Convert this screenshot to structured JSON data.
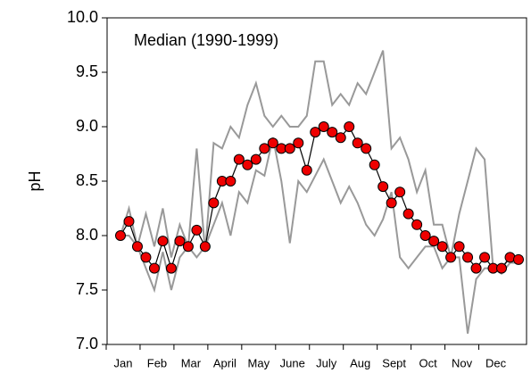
{
  "chart_data": {
    "type": "line",
    "title": "Median (1990-1999)",
    "y_label": "pH",
    "categories": [
      "Jan",
      null,
      null,
      null,
      "Feb",
      null,
      null,
      null,
      "Mar",
      null,
      null,
      null,
      "April",
      null,
      null,
      null,
      "May",
      null,
      null,
      null,
      "June",
      null,
      null,
      null,
      "July",
      null,
      null,
      null,
      "Aug",
      null,
      null,
      null,
      "Sept",
      null,
      null,
      null,
      "Oct",
      null,
      null,
      null,
      "Nov",
      null,
      null,
      null,
      "Dec",
      null,
      null,
      null
    ],
    "series": [
      {
        "color": "#999999",
        "values": [
          8.0,
          8.25,
          7.9,
          8.2,
          7.9,
          8.25,
          7.8,
          8.1,
          7.9,
          8.8,
          7.85,
          8.85,
          8.8,
          9.0,
          8.9,
          9.2,
          9.4,
          9.1,
          9.0,
          9.1,
          9.0,
          9.0,
          9.1,
          9.6,
          9.6,
          9.2,
          9.3,
          9.2,
          9.4,
          9.3,
          9.5,
          9.7,
          8.8,
          8.9,
          8.7,
          8.4,
          8.6,
          8.1,
          8.1,
          7.8,
          8.2,
          8.5,
          8.8,
          8.7,
          7.7,
          7.7,
          7.8,
          7.8
        ]
      },
      {
        "color": "#999999",
        "values": [
          8.0,
          8.0,
          7.9,
          7.7,
          7.5,
          7.85,
          7.5,
          7.8,
          7.9,
          7.8,
          7.9,
          8.1,
          8.3,
          8.0,
          8.4,
          8.3,
          8.6,
          8.55,
          8.9,
          8.5,
          7.93,
          8.5,
          8.4,
          8.55,
          8.7,
          8.5,
          8.3,
          8.45,
          8.3,
          8.1,
          8.0,
          8.15,
          8.4,
          7.8,
          7.7,
          7.8,
          7.9,
          7.9,
          7.7,
          7.8,
          7.8,
          7.1,
          7.6,
          7.7,
          7.7,
          7.65,
          7.75,
          7.75
        ]
      },
      {
        "color": "#000000",
        "marker_color": "#ee0000",
        "values": [
          8.0,
          8.13,
          7.9,
          7.8,
          7.7,
          7.95,
          7.7,
          7.95,
          7.9,
          8.05,
          7.9,
          8.3,
          8.5,
          8.5,
          8.7,
          8.65,
          8.7,
          8.8,
          8.85,
          8.8,
          8.8,
          8.85,
          8.6,
          8.95,
          9.0,
          8.95,
          8.9,
          9.0,
          8.85,
          8.8,
          8.65,
          8.45,
          8.3,
          8.4,
          8.2,
          8.1,
          8.0,
          7.95,
          7.9,
          7.8,
          7.9,
          7.8,
          7.7,
          7.8,
          7.7,
          7.7,
          7.8,
          7.78
        ]
      }
    ],
    "ylim": [
      7.0,
      10.0
    ],
    "yticks": [
      {
        "value": 7.0,
        "label": "7.0"
      },
      7.5,
      {
        "value": 8.0,
        "label": "8.0"
      },
      8.5,
      {
        "value": 9.0,
        "label": "9.0"
      },
      9.5,
      {
        "value": 10.0,
        "label": "10.0"
      }
    ]
  }
}
